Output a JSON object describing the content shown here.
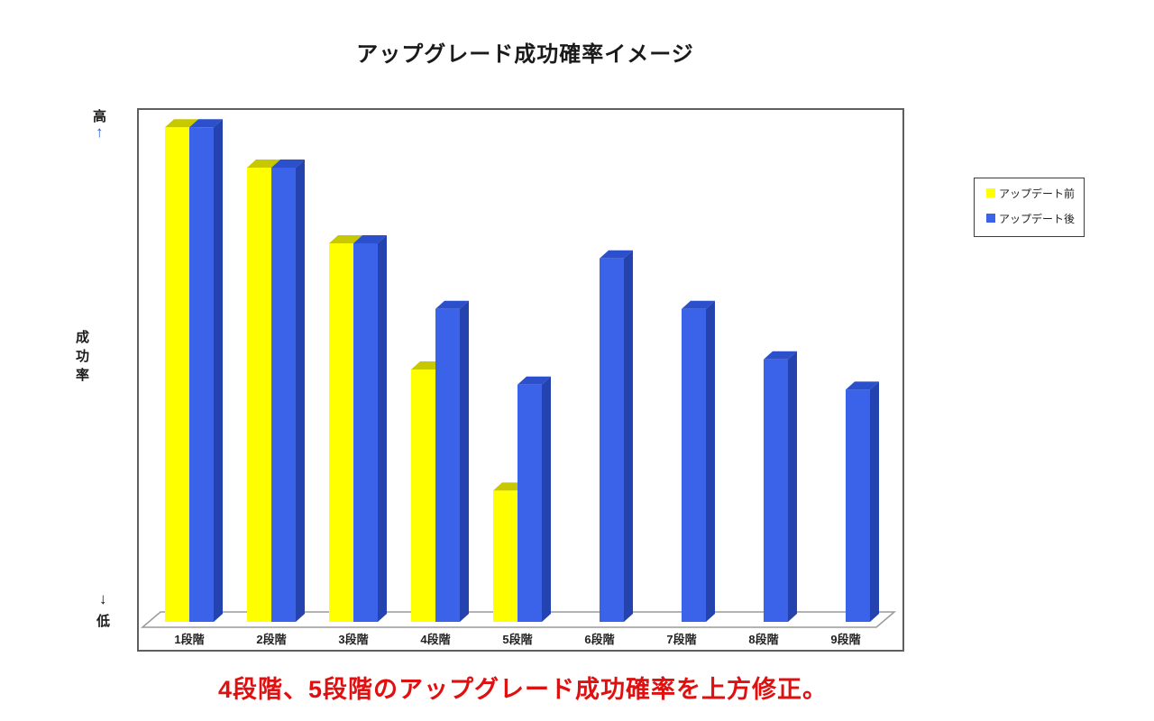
{
  "caption": {
    "text": "4段階、5段階のアップグレード成功確率を上方修正。",
    "color": "#e01010"
  },
  "y_axis": {
    "high_label": "高",
    "up_arrow": "↑",
    "up_arrow_color": "#2353cc",
    "axis_label": "成功率",
    "down_arrow": "↓",
    "low_label": "低"
  },
  "chart_data": {
    "type": "bar",
    "style": "3d-column-pairs",
    "title": "アップグレード成功確率イメージ",
    "categories": [
      "1段階",
      "2段階",
      "3段階",
      "4段階",
      "5段階",
      "6段階",
      "7段階",
      "8段階",
      "9段階"
    ],
    "series": [
      {
        "id": "before",
        "name": "アップデート前",
        "color": "#ffff00",
        "top_color": "#c8c800",
        "side_color": "#dede00",
        "values": [
          98,
          90,
          75,
          50,
          26,
          null,
          null,
          null,
          null
        ]
      },
      {
        "id": "after",
        "name": "アップデート後",
        "color": "#3b63ea",
        "top_color": "#2c50cc",
        "side_color": "#2443ae",
        "values": [
          98,
          90,
          75,
          62,
          47,
          72,
          62,
          52,
          46
        ]
      }
    ],
    "xlabel": "",
    "ylabel": "成功率",
    "yaxis_qualitative": {
      "high": "高",
      "low": "低"
    },
    "ylim": [
      0,
      100
    ],
    "grid": false,
    "legend_position": "right"
  }
}
